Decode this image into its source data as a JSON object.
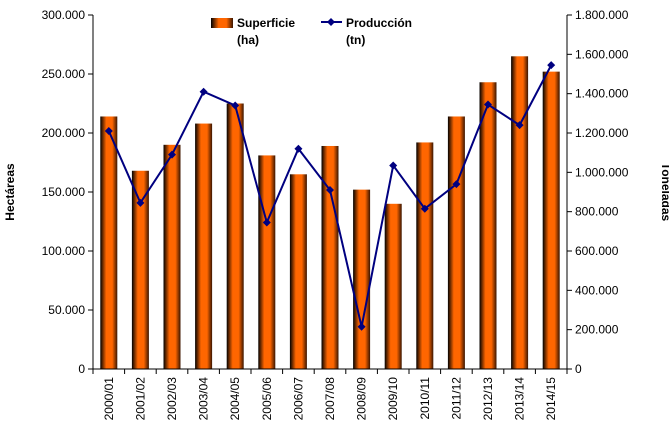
{
  "chart_data": {
    "type": "bar",
    "categories": [
      "2000/01",
      "2001/02",
      "2002/03",
      "2003/04",
      "2004/05",
      "2005/06",
      "2006/07",
      "2007/08",
      "2008/09",
      "2009/10",
      "2010/11",
      "2011/12",
      "2012/13",
      "2013/14",
      "2014/15"
    ],
    "series": [
      {
        "name": "Superficie (ha)",
        "name_lines": [
          "Superficie",
          "(ha)"
        ],
        "type": "bar",
        "axis": "left",
        "color": "#ff6600",
        "values": [
          214000,
          168000,
          190000,
          208000,
          225000,
          181000,
          165000,
          189000,
          152000,
          140000,
          192000,
          214000,
          243000,
          265000,
          252000
        ]
      },
      {
        "name": "Producción (tn)",
        "name_lines": [
          "Producción",
          "(tn)"
        ],
        "type": "line",
        "axis": "right",
        "color": "#000080",
        "values": [
          1210000,
          845000,
          1090000,
          1410000,
          1340000,
          745000,
          1120000,
          910000,
          215000,
          1035000,
          815000,
          940000,
          1345000,
          1240000,
          1545000
        ]
      }
    ],
    "ylabel": "Hectáreas",
    "y2label": "Toneladas",
    "ylim": [
      0,
      300000
    ],
    "y2lim": [
      0,
      1800000
    ],
    "yticks": [
      "0",
      "50.000",
      "100.000",
      "150.000",
      "200.000",
      "250.000",
      "300.000"
    ],
    "y2ticks": [
      "0",
      "200.000",
      "400.000",
      "600.000",
      "800.000",
      "1.000.000",
      "1.200.000",
      "1.400.000",
      "1.600.000",
      "1.800.000"
    ],
    "legend": "top-center",
    "grid": false
  }
}
